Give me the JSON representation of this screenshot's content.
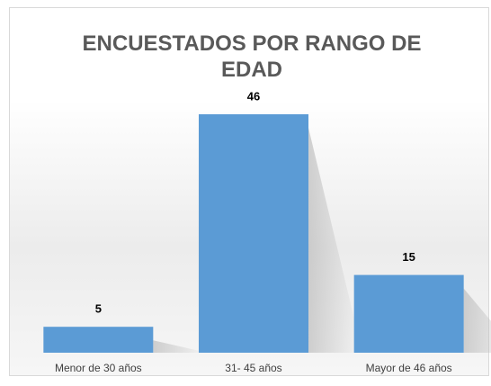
{
  "chart_data": {
    "type": "bar",
    "title": "ENCUESTADOS POR RANGO DE EDAD",
    "categories": [
      "Menor de 30 años",
      "31- 45 años",
      "Mayor de 46 años"
    ],
    "values": [
      5,
      46,
      15
    ],
    "color": "#5b9bd5"
  }
}
